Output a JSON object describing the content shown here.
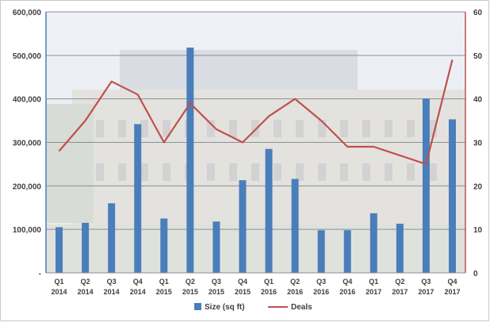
{
  "chart_data": {
    "type": "bar",
    "categories": [
      [
        "Q1",
        "2014"
      ],
      [
        "Q2",
        "2014"
      ],
      [
        "Q3",
        "2014"
      ],
      [
        "Q4",
        "2014"
      ],
      [
        "Q1",
        "2015"
      ],
      [
        "Q2",
        "2015"
      ],
      [
        "Q3",
        "2015"
      ],
      [
        "Q4",
        "2015"
      ],
      [
        "Q1",
        "2016"
      ],
      [
        "Q2",
        "2016"
      ],
      [
        "Q3",
        "2016"
      ],
      [
        "Q4",
        "2016"
      ],
      [
        "Q1",
        "2017"
      ],
      [
        "Q2",
        "2017"
      ],
      [
        "Q3",
        "2017"
      ],
      [
        "Q4",
        "2017"
      ]
    ],
    "series": [
      {
        "name": "Size (sq ft)",
        "type": "bar",
        "axis": "left",
        "color": "#4a7ebb",
        "values": [
          105000,
          115000,
          160000,
          342000,
          125000,
          518000,
          118000,
          213000,
          285000,
          216000,
          98000,
          98000,
          137000,
          113000,
          401000,
          353000
        ]
      },
      {
        "name": "Deals",
        "type": "line",
        "axis": "right",
        "color": "#c0504d",
        "values": [
          28,
          35,
          44,
          41,
          30,
          39,
          33,
          30,
          36,
          40,
          35,
          29,
          29,
          27,
          25,
          49
        ]
      }
    ],
    "y_left": {
      "min": 0,
      "max": 600000,
      "step": 100000,
      "tick_labels": [
        "-",
        "100,000",
        "200,000",
        "300,000",
        "400,000",
        "500,000",
        "600,000"
      ]
    },
    "y_right": {
      "min": 0,
      "max": 60,
      "step": 10,
      "tick_labels": [
        "0",
        "10",
        "20",
        "30",
        "40",
        "50",
        "60"
      ]
    },
    "grid": true,
    "legend": {
      "position": "bottom",
      "entries": [
        "Size (sq ft)",
        "Deals"
      ]
    },
    "title": "",
    "left_axis_color": "#4a7ebb",
    "right_axis_color": "#c0504d"
  }
}
